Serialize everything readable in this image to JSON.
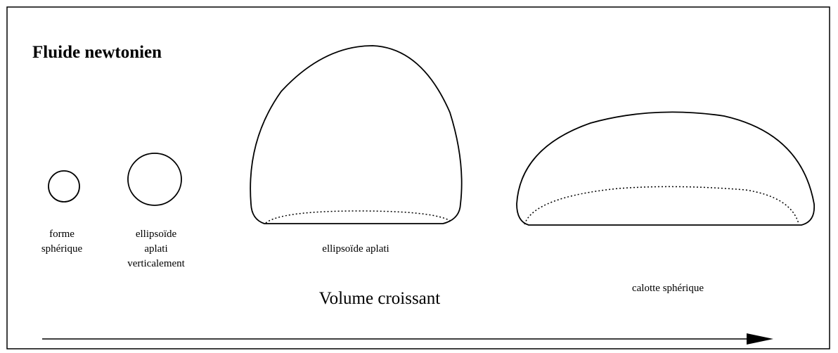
{
  "title": "Fluide newtonien",
  "shapes": [
    {
      "label": "forme\nsphérique"
    },
    {
      "label": "ellipsoïde\naplati\nverticalement"
    },
    {
      "label": "ellipsoïde aplati"
    },
    {
      "label": "calotte sphérique"
    }
  ],
  "arrow_label": "Volume croissant"
}
